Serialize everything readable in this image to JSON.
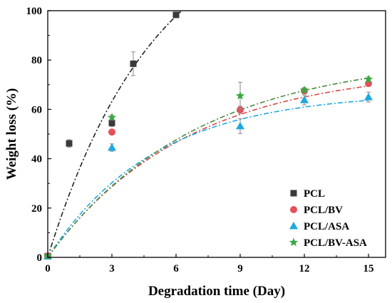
{
  "chart_data": {
    "type": "scatter",
    "xlabel": "Degradation time (Day)",
    "ylabel": "Weight loss (%)",
    "xlim": [
      0,
      15.8
    ],
    "ylim": [
      0,
      100
    ],
    "xticks": [
      0,
      3,
      6,
      9,
      12,
      15
    ],
    "yticks": [
      0,
      20,
      40,
      60,
      80,
      100
    ],
    "grid": false,
    "legend_position": "bottom-right",
    "series": [
      {
        "name": "PCL",
        "marker": "square",
        "color": "#3a3a3a",
        "fit_color": "#222222",
        "x": [
          0,
          1,
          3,
          4,
          6
        ],
        "y": [
          0.5,
          46.2,
          54.5,
          78.5,
          98.3
        ],
        "err": [
          0,
          1.5,
          1.5,
          4.8,
          0.5
        ],
        "fit": {
          "a": 140,
          "k": 0.2
        }
      },
      {
        "name": "PCL/BV",
        "marker": "circle",
        "color": "#e5505a",
        "fit_color": "#d94b4b",
        "x": [
          0,
          3,
          9,
          12,
          15
        ],
        "y": [
          0.5,
          50.8,
          59.8,
          67.5,
          70.5
        ],
        "err": [
          0,
          0,
          1.5,
          1.2,
          1.2
        ],
        "fit": {
          "a": 77,
          "k": 0.155
        }
      },
      {
        "name": "PCL/ASA",
        "marker": "triangle",
        "color": "#1fa8e0",
        "fit_color": "#1fa8e0",
        "x": [
          0,
          3,
          9,
          12,
          15
        ],
        "y": [
          0.5,
          44.5,
          53.2,
          63.8,
          65.0
        ],
        "err": [
          0,
          1.5,
          3.0,
          2.0,
          2.0
        ],
        "fit": {
          "a": 67,
          "k": 0.2
        }
      },
      {
        "name": "PCL/BV-ASA",
        "marker": "star",
        "color": "#3aa843",
        "fit_color": "#4a8c3f",
        "x": [
          0,
          3,
          9,
          12,
          15
        ],
        "y": [
          0.5,
          56.7,
          65.5,
          67.8,
          72.2
        ],
        "err": [
          0,
          1.0,
          5.5,
          1.0,
          1.0
        ],
        "fit": {
          "a": 82,
          "k": 0.145
        }
      }
    ]
  }
}
